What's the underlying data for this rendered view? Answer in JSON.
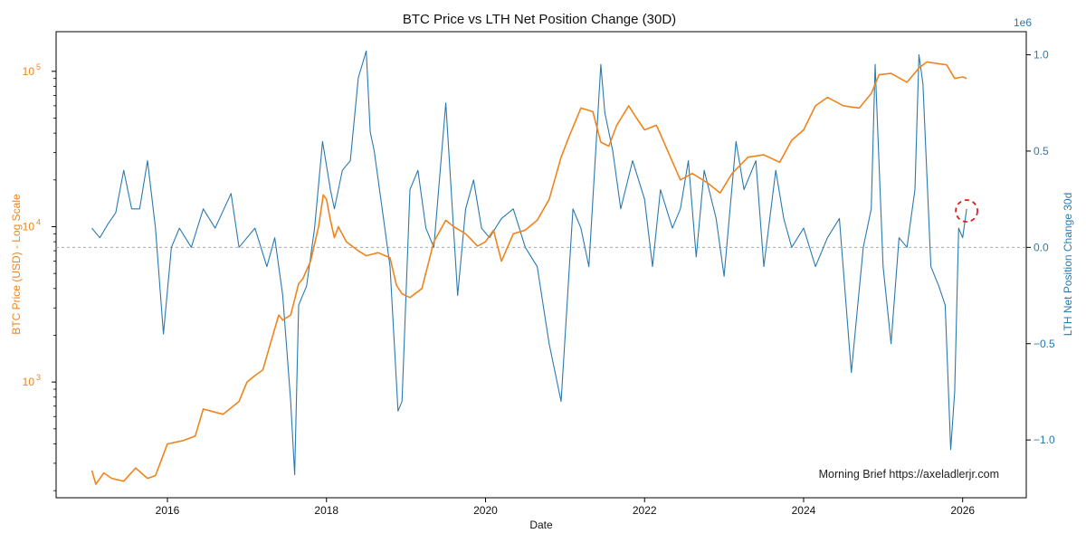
{
  "chart_data": {
    "type": "line",
    "title": "BTC Price vs LTH Net Position Change (30D)",
    "xlabel": "Date",
    "x_ticks": [
      "2016",
      "2018",
      "2020",
      "2022",
      "2024",
      "2026"
    ],
    "x_tick_values": [
      2016,
      2018,
      2020,
      2022,
      2024,
      2026
    ],
    "xlim": [
      2014.6,
      2026.8
    ],
    "left_axis": {
      "label": "BTC Price (USD) - Log Scale",
      "scale": "log",
      "ylim": [
        180,
        180000
      ],
      "ticks": [
        1000,
        10000,
        100000
      ],
      "tick_base": "10",
      "tick_exponents": [
        "3",
        "4",
        "5"
      ],
      "color": "#f0841c"
    },
    "right_axis": {
      "label": "LTH Net Position Change 30d",
      "offset_label": "1e6",
      "ylim": [
        -1.3,
        1.12
      ],
      "ticks": [
        -1.0,
        -0.5,
        0.0,
        0.5,
        1.0
      ],
      "tick_labels": [
        "−1.0",
        "−0.5",
        "0.0",
        "0.5",
        "1.0"
      ],
      "color": "#2a7ab0",
      "zero_line_color": "#aaaaaa"
    },
    "series": [
      {
        "name": "BTC Price (USD)",
        "axis": "left",
        "color": "#f0841c",
        "x": [
          2015.05,
          2015.1,
          2015.2,
          2015.3,
          2015.45,
          2015.6,
          2015.75,
          2015.85,
          2016.0,
          2016.2,
          2016.35,
          2016.45,
          2016.55,
          2016.7,
          2016.9,
          2017.0,
          2017.1,
          2017.2,
          2017.3,
          2017.4,
          2017.45,
          2017.55,
          2017.65,
          2017.7,
          2017.8,
          2017.9,
          2017.96,
          2018.0,
          2018.05,
          2018.1,
          2018.15,
          2018.25,
          2018.4,
          2018.5,
          2018.65,
          2018.8,
          2018.88,
          2018.95,
          2019.05,
          2019.2,
          2019.35,
          2019.5,
          2019.6,
          2019.75,
          2019.9,
          2020.0,
          2020.1,
          2020.2,
          2020.35,
          2020.5,
          2020.65,
          2020.8,
          2020.95,
          2021.05,
          2021.2,
          2021.35,
          2021.45,
          2021.55,
          2021.65,
          2021.8,
          2021.9,
          2022.0,
          2022.15,
          2022.3,
          2022.45,
          2022.6,
          2022.8,
          2022.95,
          2023.1,
          2023.3,
          2023.5,
          2023.7,
          2023.85,
          2024.0,
          2024.15,
          2024.3,
          2024.5,
          2024.7,
          2024.85,
          2024.95,
          2025.1,
          2025.3,
          2025.45,
          2025.55,
          2025.7,
          2025.8,
          2025.9,
          2026.0,
          2026.05
        ],
        "values": [
          270,
          220,
          260,
          240,
          230,
          280,
          240,
          250,
          400,
          420,
          450,
          670,
          650,
          620,
          750,
          1000,
          1100,
          1200,
          1800,
          2700,
          2500,
          2700,
          4300,
          4600,
          6000,
          10000,
          16000,
          15000,
          11000,
          8500,
          10000,
          8000,
          7000,
          6500,
          6800,
          6300,
          4200,
          3700,
          3500,
          4000,
          8000,
          11000,
          10000,
          9000,
          7500,
          8000,
          9500,
          6000,
          9000,
          9500,
          11000,
          15000,
          28000,
          38000,
          58000,
          55000,
          35000,
          33000,
          45000,
          60000,
          50000,
          42000,
          45000,
          30000,
          20000,
          22000,
          19000,
          16500,
          22000,
          28000,
          29000,
          26000,
          36000,
          42000,
          60000,
          68000,
          60000,
          58000,
          72000,
          95000,
          97000,
          85000,
          105000,
          115000,
          112000,
          110000,
          90000,
          92000,
          90000
        ]
      },
      {
        "name": "LTH Net Position Change 30d",
        "axis": "right",
        "color": "#2a7ab0",
        "x": [
          2015.05,
          2015.15,
          2015.25,
          2015.35,
          2015.45,
          2015.55,
          2015.65,
          2015.75,
          2015.85,
          2015.95,
          2016.05,
          2016.15,
          2016.3,
          2016.45,
          2016.6,
          2016.8,
          2016.9,
          2017.1,
          2017.25,
          2017.35,
          2017.45,
          2017.55,
          2017.6,
          2017.65,
          2017.75,
          2017.85,
          2017.95,
          2018.05,
          2018.1,
          2018.2,
          2018.3,
          2018.4,
          2018.5,
          2018.55,
          2018.6,
          2018.7,
          2018.8,
          2018.9,
          2018.95,
          2019.05,
          2019.15,
          2019.25,
          2019.35,
          2019.5,
          2019.65,
          2019.75,
          2019.85,
          2019.95,
          2020.05,
          2020.2,
          2020.35,
          2020.5,
          2020.65,
          2020.8,
          2020.9,
          2020.95,
          2021.1,
          2021.2,
          2021.3,
          2021.45,
          2021.5,
          2021.6,
          2021.7,
          2021.85,
          2022.0,
          2022.1,
          2022.2,
          2022.35,
          2022.45,
          2022.55,
          2022.65,
          2022.75,
          2022.9,
          2023.0,
          2023.15,
          2023.25,
          2023.4,
          2023.5,
          2023.65,
          2023.75,
          2023.85,
          2024.0,
          2024.15,
          2024.3,
          2024.45,
          2024.6,
          2024.75,
          2024.85,
          2024.9,
          2025.0,
          2025.1,
          2025.2,
          2025.3,
          2025.4,
          2025.45,
          2025.5,
          2025.6,
          2025.7,
          2025.78,
          2025.85,
          2025.9,
          2025.95,
          2026.0,
          2026.05
        ],
        "values": [
          0.1,
          0.05,
          0.12,
          0.18,
          0.4,
          0.2,
          0.2,
          0.45,
          0.1,
          -0.45,
          0.0,
          0.1,
          0.0,
          0.2,
          0.1,
          0.28,
          0.0,
          0.1,
          -0.1,
          0.05,
          -0.25,
          -0.8,
          -1.18,
          -0.3,
          -0.2,
          0.1,
          0.55,
          0.3,
          0.2,
          0.4,
          0.45,
          0.88,
          1.02,
          0.6,
          0.5,
          0.2,
          -0.1,
          -0.85,
          -0.8,
          0.3,
          0.4,
          0.1,
          0.0,
          0.75,
          -0.25,
          0.2,
          0.35,
          0.1,
          0.05,
          0.15,
          0.2,
          0.0,
          -0.1,
          -0.5,
          -0.7,
          -0.8,
          0.2,
          0.1,
          -0.1,
          0.95,
          0.7,
          0.5,
          0.2,
          0.45,
          0.25,
          -0.1,
          0.3,
          0.1,
          0.2,
          0.45,
          -0.05,
          0.4,
          0.15,
          -0.15,
          0.55,
          0.3,
          0.45,
          -0.1,
          0.4,
          0.15,
          0.0,
          0.1,
          -0.1,
          0.05,
          0.15,
          -0.65,
          0.0,
          0.2,
          0.95,
          -0.1,
          -0.5,
          0.05,
          0.0,
          0.3,
          1.0,
          0.85,
          -0.1,
          -0.2,
          -0.3,
          -1.05,
          -0.75,
          0.1,
          0.05,
          0.2
        ],
        "annotation": {
          "x": 2026.05,
          "y": 0.18,
          "type": "dashed-circle",
          "color": "#dd2222"
        }
      }
    ],
    "watermark": "Morning Brief  https://axeladlerjr.com"
  }
}
